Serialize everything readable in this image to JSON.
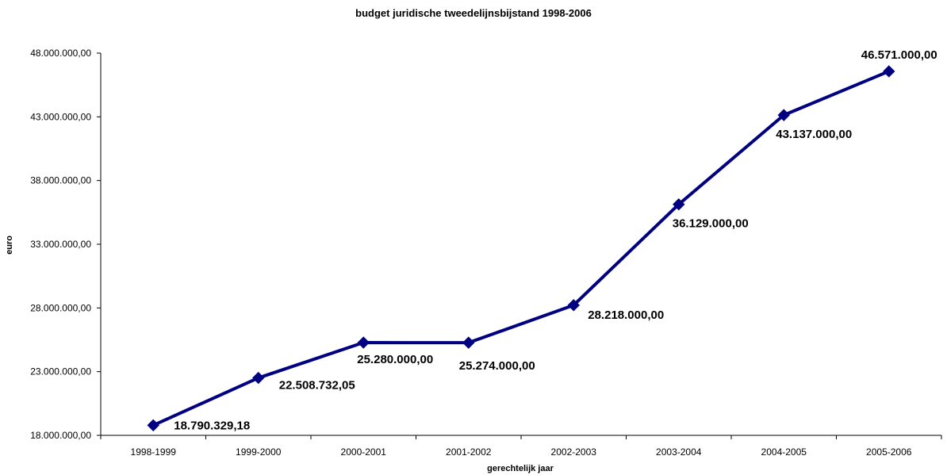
{
  "chart_data": {
    "type": "line",
    "title": "budget juridische tweedelijnsbijstand 1998-2006",
    "xlabel": "gerechtelijk jaar",
    "ylabel": "euro",
    "categories": [
      "1998-1999",
      "1999-2000",
      "2000-2001",
      "2001-2002",
      "2002-2003",
      "2003-2004",
      "2004-2005",
      "2005-2006"
    ],
    "values": [
      18790329.18,
      22508732.05,
      25280000,
      25274000,
      28218000,
      36129000,
      43137000,
      46571000
    ],
    "value_labels": [
      "18.790.329,18",
      "22.508.732,05",
      "25.280.000,00",
      "25.274.000,00",
      "28.218.000,00",
      "36.129.000,00",
      "43.137.000,00",
      "46.571.000,00"
    ],
    "ylim": [
      18000000,
      48000000
    ],
    "yticks": [
      18000000,
      23000000,
      28000000,
      33000000,
      38000000,
      43000000,
      48000000
    ],
    "ytick_labels": [
      "18.000.000,00",
      "23.000.000,00",
      "28.000.000,00",
      "33.000.000,00",
      "38.000.000,00",
      "43.000.000,00",
      "48.000.000,00"
    ],
    "grid": false,
    "legend": false,
    "line_color": "#000080",
    "marker": "diamond"
  }
}
